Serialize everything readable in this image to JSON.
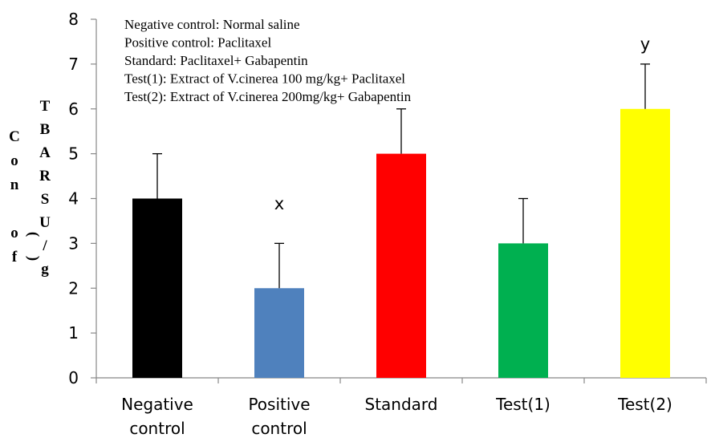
{
  "chart_data": {
    "type": "bar",
    "categories": [
      [
        "Negative",
        "control"
      ],
      [
        "Positive",
        "control"
      ],
      [
        "Standard"
      ],
      [
        "Test(1)"
      ],
      [
        "Test(2)"
      ]
    ],
    "values": [
      4,
      2,
      5,
      3,
      6
    ],
    "errors": [
      1,
      1,
      1,
      1,
      1
    ],
    "colors": [
      "#000000",
      "#4f81bd",
      "#ff0000",
      "#00b050",
      "#ffff00"
    ],
    "significance": [
      "",
      "x",
      "",
      "",
      "y"
    ],
    "ylim": [
      0,
      8
    ],
    "yticks": [
      0,
      1,
      2,
      3,
      4,
      5,
      6,
      7,
      8
    ],
    "ylabel_columns": [
      [
        "C",
        "o",
        "n",
        "",
        "o",
        "f"
      ],
      [
        "T",
        "B",
        "A",
        "R",
        "S",
        "U",
        "/",
        "g"
      ],
      [
        "",
        "",
        "",
        "",
        "(",
        ")"
      ]
    ],
    "legend_lines": [
      "Negative control: Normal saline",
      "Positive control: Paclitaxel",
      "Standard: Paclitaxel+ Gabapentin",
      "Test(1): Extract of V.cinerea 100 mg/kg+ Paclitaxel",
      "Test(2): Extract of V.cinerea 200mg/kg+ Gabapentin"
    ],
    "grid": false
  }
}
